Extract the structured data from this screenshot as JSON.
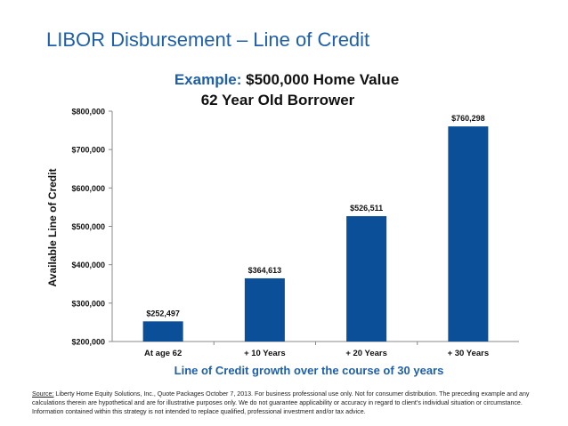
{
  "slide": {
    "title": "LIBOR Disbursement – Line of Credit"
  },
  "chart_data": {
    "type": "bar",
    "title_prefix": "Example:",
    "title_rest": " $500,000 Home Value",
    "subtitle": "62 Year Old Borrower",
    "xlabel": "Line of Credit growth over the course of 30 years",
    "ylabel": "Available Line of Credit",
    "categories": [
      "At age 62",
      "+ 10 Years",
      "+ 20 Years",
      "+ 30 Years"
    ],
    "values": [
      252497,
      364613,
      526511,
      760298
    ],
    "data_labels": [
      "$252,497",
      "$364,613",
      "$526,511",
      "$760,298"
    ],
    "yticks": [
      200000,
      300000,
      400000,
      500000,
      600000,
      700000,
      800000
    ],
    "ytick_labels": [
      "$200,000",
      "$300,000",
      "$400,000",
      "$500,000",
      "$600,000",
      "$700,000",
      "$800,000"
    ],
    "ylim": [
      200000,
      800000
    ],
    "grid": false,
    "colors": {
      "bar": "#0a4f98",
      "title_accent": "#1f5fa8",
      "title_dark": "#111111",
      "xlabel": "#1f5fa8",
      "axis": "#888888"
    }
  },
  "footnote": {
    "source_label": "Source:",
    "text": " Liberty Home Equity Solutions, Inc., Quote Packages  October 7, 2013.  For business professional use only. Not for consumer distribution.  The preceding example and any calculations therein are hypothetical and are for illustrative purposes only.  We do not guarantee applicability or accuracy in regard to client’s individual situation or circumstance.  Information contained within this strategy  is not intended to replace qualified, professional investment and/or tax advice."
  }
}
